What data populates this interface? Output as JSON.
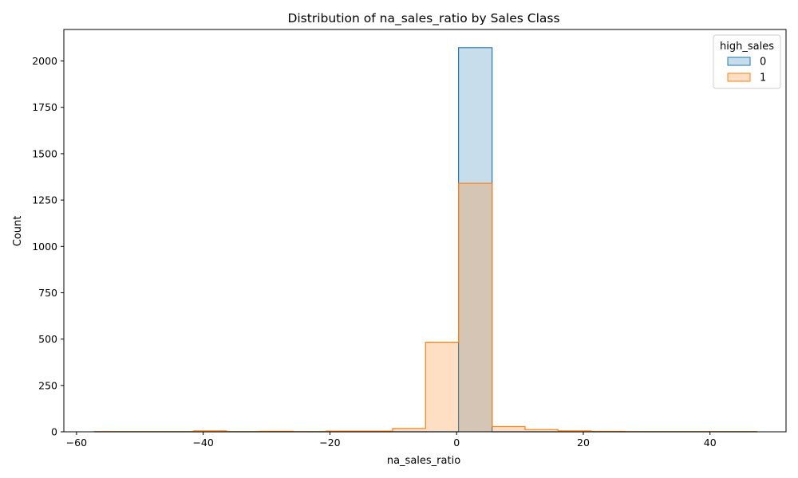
{
  "chart_data": {
    "type": "histogram",
    "title": "Distribution of na_sales_ratio by Sales Class",
    "xlabel": "na_sales_ratio",
    "ylabel": "Count",
    "xlim": [
      -62,
      52
    ],
    "ylim": [
      0,
      2170
    ],
    "xticks": [
      -60,
      -40,
      -20,
      0,
      20,
      40
    ],
    "yticks": [
      0,
      250,
      500,
      750,
      1000,
      1250,
      1500,
      1750,
      2000
    ],
    "grid": false,
    "legend": {
      "title": "high_sales",
      "placement": "top-right"
    },
    "bin_edges": [
      -57.2,
      -52.0,
      -46.8,
      -41.5,
      -36.3,
      -31.1,
      -25.8,
      -20.6,
      -15.4,
      -10.1,
      -4.9,
      0.3,
      5.6,
      10.8,
      16.0,
      21.2,
      26.5,
      31.7,
      36.9,
      42.2,
      47.4
    ],
    "series": [
      {
        "name": "0",
        "color": "#1f77b4",
        "fill": "rgba(31,119,180,0.25)",
        "counts": [
          0,
          0,
          0,
          0,
          0,
          0,
          0,
          0,
          0,
          0,
          0,
          2072,
          0,
          0,
          0,
          0,
          0,
          0,
          0,
          0
        ]
      },
      {
        "name": "1",
        "color": "#ff7f0e",
        "fill": "rgba(255,127,14,0.25)",
        "counts": [
          1,
          1,
          1,
          5,
          1,
          3,
          1,
          4,
          4,
          18,
          483,
          1340,
          28,
          12,
          5,
          2,
          1,
          1,
          1,
          1
        ]
      }
    ]
  }
}
